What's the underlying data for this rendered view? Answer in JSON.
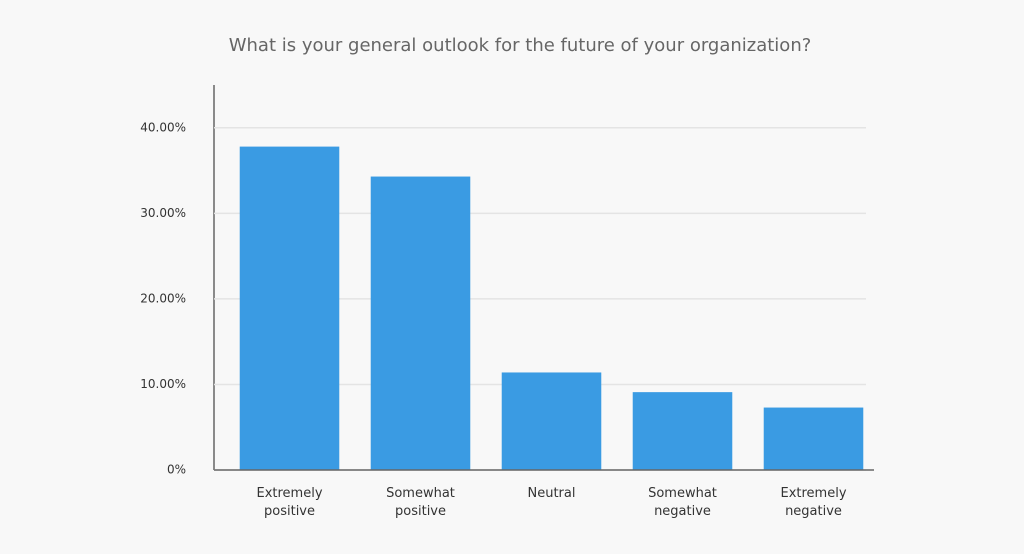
{
  "chart_data": {
    "type": "bar",
    "title": "What is your general outlook for the future of your organization?",
    "categories": [
      "Extremely positive",
      "Somewhat positive",
      "Neutral",
      "Somewhat negative",
      "Extremely negative"
    ],
    "values": [
      37.8,
      34.3,
      11.4,
      9.1,
      7.3
    ],
    "color": "#3a9be3",
    "ylim": [
      0,
      45
    ],
    "yticks": [
      {
        "value": 0,
        "label": "0%"
      },
      {
        "value": 10,
        "label": "10.00%"
      },
      {
        "value": 20,
        "label": "20.00%"
      },
      {
        "value": 30,
        "label": "30.00%"
      },
      {
        "value": 40,
        "label": "40.00%"
      }
    ],
    "grid": true
  }
}
